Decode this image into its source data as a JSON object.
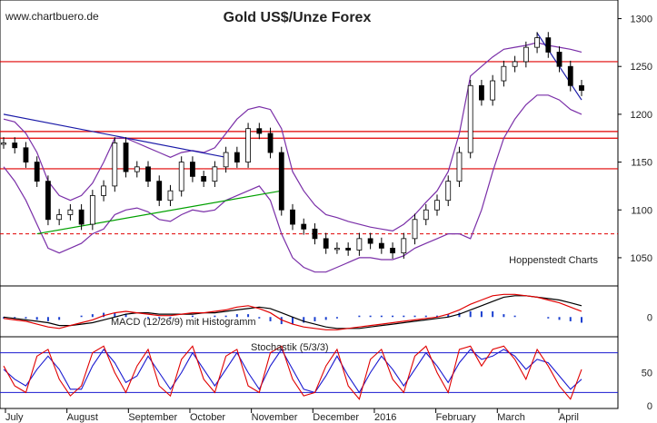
{
  "chart_data": {
    "type": "line",
    "title": "Gold US$/Unze Forex",
    "watermark_site": "www.chartbuero.de",
    "credit": "Hoppenstedt Charts",
    "x_labels": [
      "July",
      "August",
      "September",
      "October",
      "November",
      "December",
      "2016",
      "February",
      "March",
      "April"
    ],
    "price_panel": {
      "ylim": [
        1030,
        1310
      ],
      "yticks": [
        "1300",
        "1250",
        "1200",
        "1150",
        "1100",
        "1050"
      ],
      "ytick_values": [
        1300,
        1250,
        1200,
        1150,
        1100,
        1050
      ],
      "horizontal_levels": [
        1255,
        1182,
        1175,
        1143
      ],
      "dashed_level": 1075,
      "series": {
        "close": [
          1170,
          1165,
          1150,
          1130,
          1090,
          1095,
          1100,
          1085,
          1115,
          1125,
          1170,
          1140,
          1145,
          1130,
          1110,
          1120,
          1150,
          1135,
          1130,
          1145,
          1160,
          1150,
          1185,
          1180,
          1160,
          1100,
          1085,
          1080,
          1070,
          1060,
          1060,
          1058,
          1070,
          1065,
          1060,
          1055,
          1070,
          1090,
          1100,
          1110,
          1130,
          1160,
          1230,
          1215,
          1235,
          1250,
          1255,
          1270,
          1280,
          1265,
          1250,
          1230,
          1225
        ],
        "upper_band": [
          1195,
          1192,
          1180,
          1160,
          1130,
          1115,
          1110,
          1115,
          1128,
          1150,
          1175,
          1175,
          1170,
          1165,
          1160,
          1155,
          1160,
          1162,
          1160,
          1165,
          1180,
          1195,
          1205,
          1208,
          1205,
          1185,
          1140,
          1120,
          1105,
          1095,
          1092,
          1088,
          1085,
          1082,
          1080,
          1078,
          1085,
          1095,
          1108,
          1120,
          1140,
          1180,
          1240,
          1250,
          1260,
          1268,
          1270,
          1272,
          1275,
          1272,
          1270,
          1268,
          1265
        ],
        "lower_band": [
          1145,
          1130,
          1110,
          1085,
          1060,
          1055,
          1060,
          1065,
          1075,
          1080,
          1095,
          1100,
          1102,
          1098,
          1090,
          1088,
          1095,
          1100,
          1098,
          1100,
          1110,
          1115,
          1120,
          1125,
          1110,
          1075,
          1050,
          1040,
          1035,
          1035,
          1040,
          1045,
          1050,
          1050,
          1048,
          1048,
          1052,
          1060,
          1065,
          1070,
          1075,
          1075,
          1070,
          1100,
          1140,
          1175,
          1195,
          1210,
          1220,
          1220,
          1215,
          1205,
          1200
        ]
      },
      "annotations": [
        {
          "label": "falling-trendline",
          "from": [
            0,
            1200
          ],
          "to": [
            20,
            1155
          ]
        },
        {
          "label": "rising-trendline",
          "from": [
            3,
            1075
          ],
          "to": [
            25,
            1120
          ]
        },
        {
          "label": "march-trendline",
          "from": [
            48,
            1285
          ],
          "to": [
            52,
            1215
          ]
        }
      ]
    },
    "macd_panel": {
      "label": "MACD (12/26/9) mit Histogramm",
      "yticks": [
        "0"
      ],
      "ylim": [
        -12,
        20
      ],
      "macd": [
        -1,
        -2,
        -3,
        -5,
        -7,
        -8,
        -6,
        -4,
        -2,
        1,
        3,
        4,
        3,
        2,
        1,
        1,
        2,
        3,
        3,
        4,
        5,
        7,
        8,
        6,
        3,
        -2,
        -5,
        -7,
        -8,
        -9,
        -9,
        -8,
        -7,
        -6,
        -5,
        -4,
        -3,
        -2,
        -1,
        0,
        2,
        5,
        9,
        12,
        15,
        16,
        16,
        15,
        14,
        12,
        10,
        7,
        4
      ],
      "signal": [
        0,
        -1,
        -2,
        -3,
        -4,
        -6,
        -6,
        -5,
        -4,
        -2,
        0,
        2,
        3,
        3,
        2,
        2,
        2,
        2,
        3,
        3,
        4,
        5,
        6,
        7,
        6,
        3,
        0,
        -3,
        -5,
        -7,
        -8,
        -8,
        -8,
        -7,
        -6,
        -5,
        -4,
        -3,
        -2,
        -1,
        0,
        2,
        5,
        8,
        11,
        14,
        15,
        15,
        14,
        13,
        12,
        10,
        8
      ],
      "histogram": [
        -1,
        -1,
        -1,
        -2,
        -3,
        -2,
        0,
        1,
        2,
        3,
        3,
        2,
        0,
        -1,
        -1,
        -1,
        0,
        1,
        0,
        1,
        1,
        2,
        2,
        -1,
        -3,
        -5,
        -5,
        -4,
        -3,
        -2,
        -1,
        0,
        1,
        1,
        1,
        1,
        1,
        1,
        1,
        1,
        2,
        3,
        4,
        4,
        4,
        2,
        1,
        0,
        0,
        -1,
        -2,
        -3,
        -4
      ]
    },
    "stoch_panel": {
      "label": "Stochastik (5/3/3)",
      "yticks": [
        "50",
        "0"
      ],
      "ylim": [
        0,
        100
      ],
      "levels": [
        80,
        20
      ],
      "k": [
        60,
        30,
        20,
        75,
        85,
        40,
        15,
        30,
        80,
        90,
        50,
        20,
        60,
        85,
        30,
        15,
        70,
        90,
        40,
        20,
        75,
        85,
        30,
        20,
        80,
        90,
        40,
        15,
        20,
        60,
        85,
        30,
        10,
        70,
        85,
        40,
        20,
        75,
        90,
        50,
        20,
        85,
        90,
        60,
        85,
        90,
        70,
        40,
        85,
        60,
        30,
        10,
        55
      ],
      "d": [
        55,
        40,
        30,
        55,
        75,
        55,
        25,
        25,
        60,
        85,
        65,
        35,
        45,
        75,
        50,
        25,
        50,
        80,
        55,
        30,
        55,
        80,
        50,
        25,
        60,
        85,
        55,
        25,
        20,
        45,
        75,
        45,
        20,
        50,
        75,
        55,
        30,
        55,
        80,
        60,
        35,
        65,
        85,
        70,
        75,
        85,
        75,
        55,
        70,
        65,
        45,
        25,
        40
      ]
    }
  }
}
